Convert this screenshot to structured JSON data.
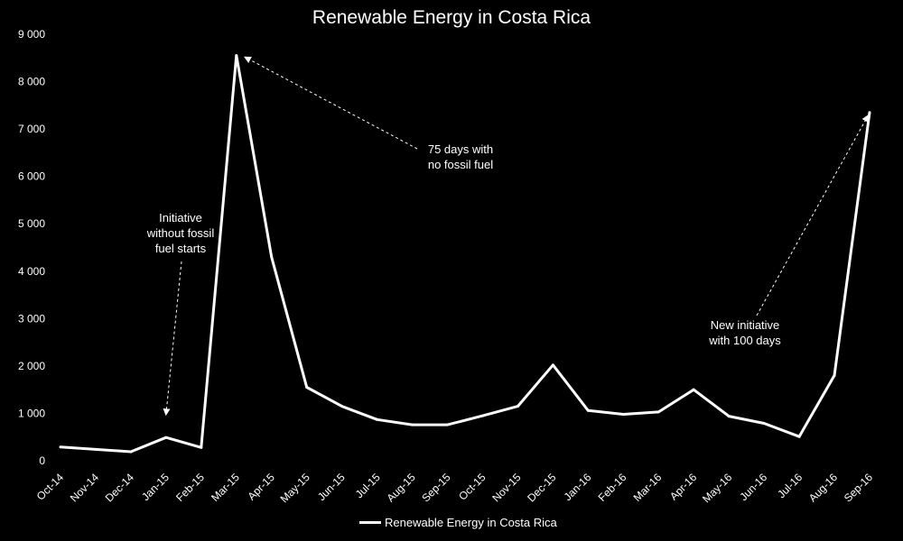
{
  "chart_data": {
    "type": "line",
    "title": "Renewable Energy in Costa Rica",
    "xlabel": "",
    "ylabel": "",
    "ylim": [
      0,
      9000
    ],
    "y_ticks": [
      "0",
      "1 000",
      "2 000",
      "3 000",
      "4 000",
      "5 000",
      "6 000",
      "7 000",
      "8 000",
      "9 000"
    ],
    "y_tick_values": [
      0,
      1000,
      2000,
      3000,
      4000,
      5000,
      6000,
      7000,
      8000,
      9000
    ],
    "categories": [
      "Oct-14",
      "Nov-14",
      "Dec-14",
      "Jan-15",
      "Feb-15",
      "Mar-15",
      "Apr-15",
      "May-15",
      "Jun-15",
      "Jul-15",
      "Aug-15",
      "Sep-15",
      "Oct-15",
      "Nov-15",
      "Dec-15",
      "Jan-16",
      "Feb-16",
      "Mar-16",
      "Apr-16",
      "May-16",
      "Jun-16",
      "Jul-16",
      "Aug-16",
      "Sep-16"
    ],
    "series": [
      {
        "name": "Renewable Energy in Costa Rica",
        "color": "#ffffff",
        "values": [
          290,
          240,
          190,
          490,
          280,
          8550,
          4300,
          1550,
          1150,
          870,
          760,
          760,
          950,
          1150,
          2020,
          1060,
          980,
          1030,
          1500,
          940,
          790,
          510,
          1800,
          7350
        ]
      }
    ],
    "annotations": [
      {
        "text": "Initiative\nwithout fossil\nfuel starts",
        "target": "Jan-15"
      },
      {
        "text": "75 days with\nno fossil fuel",
        "target": "Mar-15"
      },
      {
        "text": "New initiative\nwith 100 days",
        "target": "Sep-16"
      }
    ],
    "legend": {
      "position": "bottom",
      "label": "Renewable Energy in Costa Rica"
    },
    "grid": false
  }
}
